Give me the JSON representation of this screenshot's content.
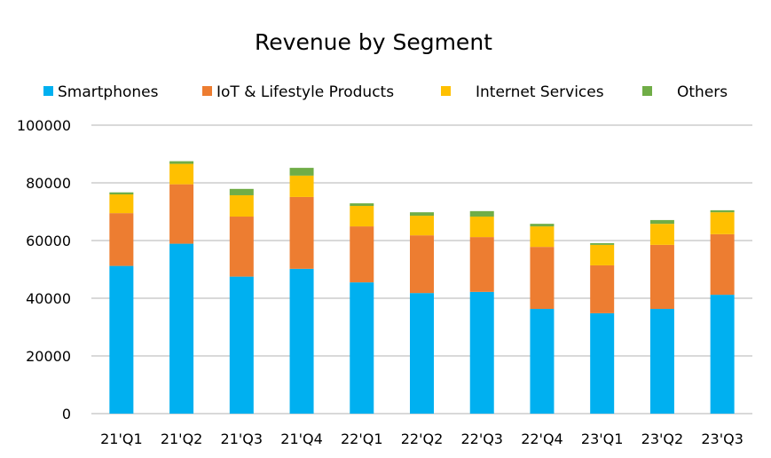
{
  "chart_data": {
    "type": "bar",
    "stacked": true,
    "title": "Revenue by Segment",
    "xlabel": "",
    "ylabel": "",
    "ylim": [
      0,
      100000
    ],
    "yticks": [
      0,
      20000,
      40000,
      60000,
      80000,
      100000
    ],
    "ytick_labels": [
      "0",
      "20000",
      "40000",
      "60000",
      "80000",
      "100000"
    ],
    "grid": true,
    "legend_position": "top",
    "categories": [
      "21'Q1",
      "21'Q2",
      "21'Q3",
      "21'Q4",
      "22'Q1",
      "22'Q2",
      "22'Q3",
      "22'Q4",
      "23'Q1",
      "23'Q2",
      "23'Q3"
    ],
    "series": [
      {
        "name": "Smartphones",
        "color": "#00B0F0",
        "values": [
          51200,
          58900,
          47500,
          50200,
          45500,
          41800,
          42200,
          36300,
          34800,
          36300,
          41200
        ]
      },
      {
        "name": "IoT & Lifestyle Products",
        "color": "#ED7D31",
        "values": [
          18300,
          20600,
          20800,
          24900,
          19400,
          20000,
          19000,
          21500,
          16600,
          22200,
          21000
        ]
      },
      {
        "name": "Internet Services",
        "color": "#FFC000",
        "values": [
          6500,
          7100,
          7400,
          7400,
          7100,
          6800,
          7100,
          7100,
          7100,
          7300,
          7600
        ]
      },
      {
        "name": "Others",
        "color": "#70AD47",
        "values": [
          700,
          900,
          2200,
          2700,
          900,
          1200,
          1900,
          900,
          600,
          1300,
          700
        ]
      }
    ]
  }
}
